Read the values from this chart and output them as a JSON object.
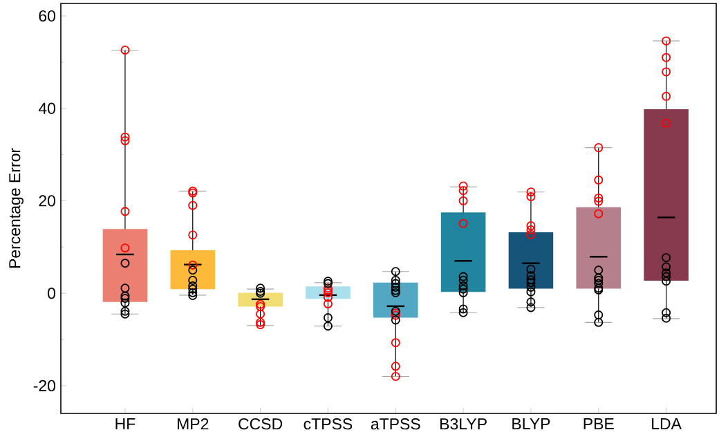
{
  "chart_data": {
    "type": "box",
    "ylabel": "Percentage Error",
    "categories": [
      "HF",
      "MP2",
      "CCSD",
      "cTPSS",
      "aTPSS",
      "B3LYP",
      "BLYP",
      "PBE",
      "LDA"
    ],
    "colors": [
      "#eb7f72",
      "#fdb93a",
      "#f2dc74",
      "#aadfee",
      "#52a8c3",
      "#22859f",
      "#17547a",
      "#b57f8b",
      "#873a4e"
    ],
    "boxes": [
      {
        "low": -4.5,
        "q1": -1.9,
        "median": 8.4,
        "q3": 13.9,
        "high": 52.6
      },
      {
        "low": -0.4,
        "q1": 0.9,
        "median": 6.2,
        "q3": 9.3,
        "high": 22.1
      },
      {
        "low": -7.0,
        "q1": -2.9,
        "median": -1.3,
        "q3": 0.1,
        "high": 0.9
      },
      {
        "low": -7.1,
        "q1": -1.2,
        "median": -0.4,
        "q3": 1.5,
        "high": 2.3
      },
      {
        "low": -18.0,
        "q1": -5.3,
        "median": -2.8,
        "q3": 2.3,
        "high": 4.7
      },
      {
        "low": -4.2,
        "q1": 0.3,
        "median": 7.0,
        "q3": 17.5,
        "high": 23.0
      },
      {
        "low": -3.1,
        "q1": 1.0,
        "median": 6.5,
        "q3": 13.2,
        "high": 21.9
      },
      {
        "low": -6.3,
        "q1": 1.0,
        "median": 7.9,
        "q3": 18.6,
        "high": 31.5
      },
      {
        "low": -5.5,
        "q1": 2.7,
        "median": 16.4,
        "q3": 39.8,
        "high": 54.6
      }
    ],
    "series": [
      {
        "type": "scatter",
        "color": "#ff0000",
        "marker": "circle",
        "x": [
          "HF",
          "HF",
          "HF",
          "HF",
          "HF",
          "MP2",
          "MP2",
          "MP2",
          "MP2",
          "MP2",
          "CCSD",
          "CCSD",
          "CCSD",
          "CCSD",
          "CCSD",
          "cTPSS",
          "cTPSS",
          "cTPSS",
          "cTPSS",
          "cTPSS",
          "aTPSS",
          "aTPSS",
          "aTPSS",
          "aTPSS",
          "aTPSS",
          "B3LYP",
          "B3LYP",
          "B3LYP",
          "B3LYP",
          "BLYP",
          "BLYP",
          "BLYP",
          "BLYP",
          "BLYP",
          "PBE",
          "PBE",
          "PBE",
          "PBE",
          "PBE",
          "LDA",
          "LDA",
          "LDA",
          "LDA",
          "LDA"
        ],
        "values": [
          52.6,
          33.8,
          33.0,
          17.7,
          9.8,
          22.1,
          21.7,
          19.0,
          12.6,
          6.1,
          -2.4,
          -2.9,
          -4.5,
          -6.3,
          -6.8,
          1.1,
          0.6,
          0.1,
          -0.9,
          -2.3,
          -4.3,
          -4.8,
          -10.7,
          -15.8,
          -18.0,
          23.2,
          22.2,
          20.0,
          15.1,
          21.9,
          20.9,
          14.6,
          13.7,
          12.7,
          31.5,
          24.5,
          20.6,
          19.9,
          17.2,
          54.6,
          51.0,
          47.9,
          42.6,
          36.8
        ]
      },
      {
        "type": "scatter",
        "color": "#000000",
        "marker": "circle",
        "x": [
          "HF",
          "HF",
          "HF",
          "HF",
          "HF",
          "HF",
          "HF",
          "MP2",
          "MP2",
          "MP2",
          "MP2",
          "MP2",
          "MP2",
          "CCSD",
          "CCSD",
          "CCSD",
          "cTPSS",
          "cTPSS",
          "cTPSS",
          "cTPSS",
          "aTPSS",
          "aTPSS",
          "aTPSS",
          "aTPSS",
          "aTPSS",
          "aTPSS",
          "aTPSS",
          "aTPSS",
          "B3LYP",
          "B3LYP",
          "B3LYP",
          "B3LYP",
          "B3LYP",
          "B3LYP",
          "B3LYP",
          "BLYP",
          "BLYP",
          "BLYP",
          "BLYP",
          "BLYP",
          "BLYP",
          "BLYP",
          "BLYP",
          "PBE",
          "PBE",
          "PBE",
          "PBE",
          "PBE",
          "PBE",
          "PBE",
          "PBE",
          "LDA",
          "LDA",
          "LDA",
          "LDA",
          "LDA",
          "LDA",
          "LDA"
        ],
        "values": [
          6.5,
          1.1,
          -0.6,
          -1.1,
          -2.1,
          -3.9,
          -4.5,
          5.0,
          2.8,
          1.6,
          0.9,
          0.1,
          -0.5,
          1.1,
          0.4,
          0.0,
          2.6,
          2.1,
          -5.3,
          -7.1,
          4.7,
          2.8,
          2.1,
          1.3,
          0.6,
          0.1,
          -3.9,
          -5.8,
          3.6,
          2.8,
          1.6,
          0.9,
          0.1,
          -3.4,
          -4.2,
          5.2,
          3.8,
          2.9,
          2.3,
          1.3,
          0.3,
          -1.9,
          -3.1,
          5.0,
          3.3,
          2.8,
          2.1,
          1.1,
          0.7,
          -4.7,
          -6.3,
          7.7,
          5.7,
          4.4,
          3.6,
          2.6,
          -4.2,
          -5.4
        ]
      }
    ],
    "ylim": [
      -26,
      62.7
    ],
    "yticks": [
      -20,
      0,
      20,
      40,
      60
    ]
  }
}
